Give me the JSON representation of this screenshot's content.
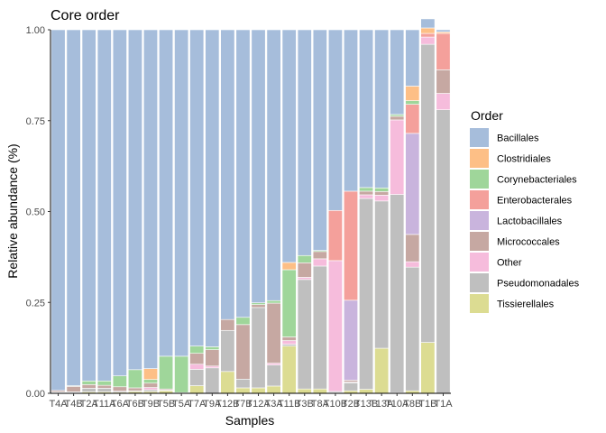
{
  "chart_data": {
    "type": "bar",
    "stacked": true,
    "title": "Core order",
    "xlabel": "Samples",
    "ylabel": "Relative abundance (%)",
    "ylim": [
      0,
      1
    ],
    "yticks": [
      "0.00",
      "0.25",
      "0.50",
      "0.75",
      "1.00"
    ],
    "grid": false,
    "legend": {
      "title": "Order",
      "position": "right"
    },
    "categories": [
      "T4A",
      "T4B",
      "T2A",
      "T11A",
      "T6A",
      "T6B",
      "T9B",
      "T5B",
      "T5A",
      "T7A",
      "T9A",
      "T12B",
      "T7B",
      "T12A",
      "T3A",
      "T11B",
      "T3B",
      "T8A",
      "T10B",
      "T2B",
      "T13B",
      "T13A",
      "T10A",
      "T8B",
      "T1B",
      "T1A"
    ],
    "series": [
      {
        "name": "Bacillales",
        "color": "#a6bddb",
        "values": [
          0.992,
          0.979,
          0.966,
          0.966,
          0.952,
          0.935,
          0.932,
          0.898,
          0.898,
          0.87,
          0.872,
          0.797,
          0.791,
          0.751,
          0.745,
          0.64,
          0.621,
          0.607,
          0.497,
          0.444,
          0.434,
          0.435,
          0.233,
          0.155,
          0.025,
          0.006
        ]
      },
      {
        "name": "Clostridiales",
        "color": "#fdbf86",
        "values": [
          0,
          0,
          0,
          0,
          0,
          0,
          0.03,
          0,
          0,
          0,
          0,
          0,
          0,
          0,
          0,
          0.02,
          0,
          0,
          0,
          0,
          0,
          0,
          0,
          0.04,
          0.015,
          0.004
        ]
      },
      {
        "name": "Corynebacteriales",
        "color": "#9fd69a",
        "values": [
          0,
          0.002,
          0.01,
          0.012,
          0.03,
          0.05,
          0.01,
          0.09,
          0.1,
          0.02,
          0.008,
          0,
          0.02,
          0.005,
          0.007,
          0.185,
          0.02,
          0.003,
          0,
          0,
          0.01,
          0.01,
          0.005,
          0.01,
          0,
          0
        ]
      },
      {
        "name": "Enterobacterales",
        "color": "#f4a09b",
        "values": [
          0,
          0,
          0,
          0,
          0,
          0,
          0,
          0,
          0,
          0,
          0,
          0,
          0,
          0,
          0,
          0,
          0,
          0,
          0.138,
          0.3,
          0,
          0,
          0,
          0.08,
          0.01,
          0.1
        ]
      },
      {
        "name": "Lactobacillales",
        "color": "#c9b4dd",
        "values": [
          0,
          0,
          0,
          0,
          0,
          0,
          0,
          0,
          0,
          0,
          0,
          0,
          0,
          0,
          0,
          0,
          0,
          0,
          0,
          0.22,
          0,
          0,
          0,
          0.278,
          0,
          0
        ]
      },
      {
        "name": "Micrococcales",
        "color": "#c6a8a2",
        "values": [
          0.004,
          0.015,
          0.01,
          0.008,
          0.012,
          0.008,
          0.012,
          0.003,
          0.002,
          0.03,
          0.045,
          0.03,
          0.15,
          0.008,
          0.165,
          0.01,
          0.04,
          0.02,
          0,
          0.005,
          0.01,
          0.01,
          0.01,
          0.075,
          0,
          0.065
        ]
      },
      {
        "name": "Other",
        "color": "#f6bcdc",
        "values": [
          0,
          0,
          0,
          0,
          0,
          0,
          0.006,
          0,
          0,
          0.014,
          0.005,
          0,
          0,
          0,
          0.005,
          0.01,
          0.006,
          0.02,
          0.36,
          0.002,
          0.01,
          0.016,
          0.205,
          0.015,
          0.02,
          0.045
        ]
      },
      {
        "name": "Pseudomonadales",
        "color": "#bfbfbf",
        "values": [
          0.002,
          0.002,
          0.01,
          0.01,
          0.003,
          0.002,
          0.005,
          0.002,
          0,
          0.045,
          0.07,
          0.113,
          0.024,
          0.221,
          0.058,
          0.005,
          0.301,
          0.338,
          0.003,
          0.022,
          0.525,
          0.405,
          0.545,
          0.34,
          0.82,
          0.78
        ]
      },
      {
        "name": "Tissierellales",
        "color": "#dcdc92",
        "values": [
          0.002,
          0.002,
          0.004,
          0.004,
          0.003,
          0.005,
          0.005,
          0.007,
          0,
          0.021,
          0,
          0.06,
          0.015,
          0.015,
          0.02,
          0.13,
          0.012,
          0.012,
          0.002,
          0.007,
          0.011,
          0.124,
          0.002,
          0.007,
          0.14,
          0
        ]
      }
    ]
  }
}
